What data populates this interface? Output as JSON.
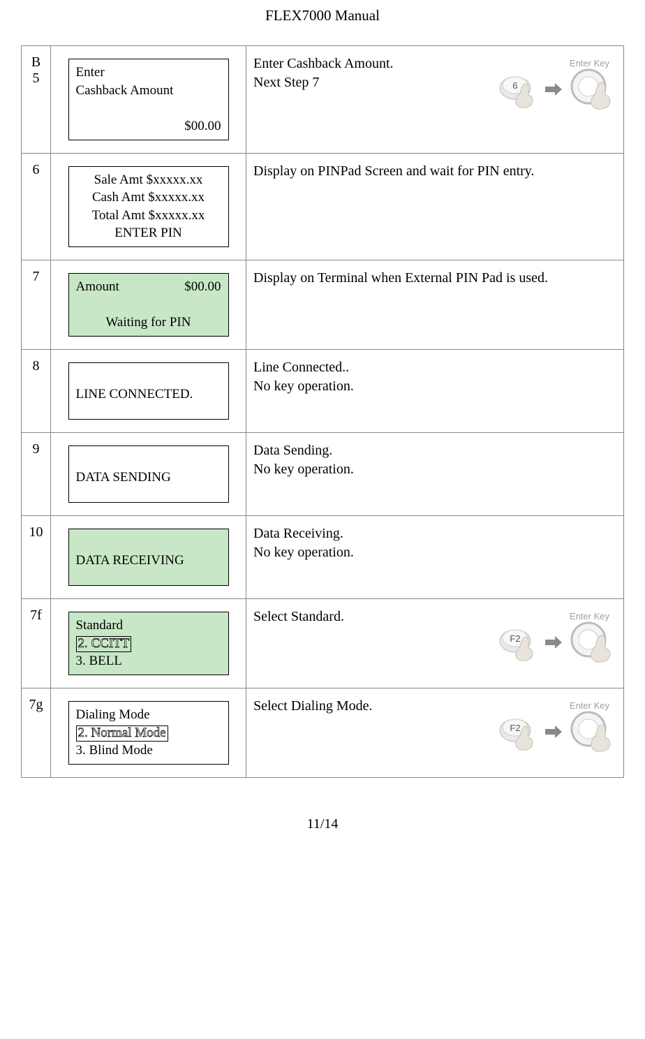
{
  "docTitle": "FLEX7000 Manual",
  "footer": "11/14",
  "colors": {
    "greenBg": "#c7e7c7",
    "border": "#888888",
    "text": "#000000"
  },
  "rows": [
    {
      "step": "B 5",
      "screenBg": "white",
      "screenLines": [
        {
          "text": "Enter",
          "align": "left"
        },
        {
          "text": "Cashback Amount",
          "align": "left"
        },
        {
          "text": "",
          "align": "left"
        },
        {
          "text": "$00.00",
          "align": "right"
        }
      ],
      "desc": [
        "Enter Cashback Amount.",
        "Next Step 7"
      ],
      "keyGraphic": {
        "left": "6",
        "label": "Enter Key"
      }
    },
    {
      "step": "6",
      "screenBg": "white",
      "screenLines": [
        {
          "text": "Sale Amt $xxxxx.xx",
          "align": "center"
        },
        {
          "text": "Cash Amt $xxxxx.xx",
          "align": "center"
        },
        {
          "text": "Total Amt $xxxxx.xx",
          "align": "center"
        },
        {
          "text": "ENTER PIN",
          "align": "center"
        }
      ],
      "desc": [
        "Display on PINPad Screen and wait for PIN entry."
      ]
    },
    {
      "step": "7",
      "screenBg": "green",
      "screenLines": [
        {
          "left": "Amount",
          "right": "$00.00",
          "type": "split"
        },
        {
          "text": "",
          "align": "left"
        },
        {
          "text": "Waiting for PIN",
          "align": "center"
        }
      ],
      "desc": [
        "Display on Terminal when External PIN Pad is used."
      ]
    },
    {
      "step": "8",
      "screenBg": "white",
      "screenLines": [
        {
          "text": "",
          "align": "left"
        },
        {
          "text": "LINE CONNECTED.",
          "align": "left"
        }
      ],
      "desc": [
        "Line Connected..",
        "No key operation."
      ]
    },
    {
      "step": "9",
      "screenBg": "white",
      "screenLines": [
        {
          "text": "",
          "align": "left"
        },
        {
          "text": "DATA SENDING",
          "align": "left"
        }
      ],
      "desc": [
        "Data Sending.",
        "No key operation."
      ]
    },
    {
      "step": "10",
      "screenBg": "green",
      "screenLines": [
        {
          "text": "",
          "align": "left"
        },
        {
          "text": "DATA RECEIVING",
          "align": "left"
        }
      ],
      "desc": [
        "Data Receiving.",
        "No key operation."
      ]
    },
    {
      "step": "7f",
      "screenBg": "green",
      "screenLines": [
        {
          "text": "Standard",
          "align": "left"
        },
        {
          "text": "2. CCITT",
          "align": "left",
          "outline": true
        },
        {
          "text": "3. BELL",
          "align": "left"
        }
      ],
      "desc": [
        "Select Standard."
      ],
      "keyGraphic": {
        "left": "F2",
        "label": "Enter Key"
      }
    },
    {
      "step": "7g",
      "screenBg": "white",
      "screenLines": [
        {
          "text": "Dialing Mode",
          "align": "left"
        },
        {
          "text": "2. Normal Mode",
          "align": "left",
          "outline": true
        },
        {
          "text": "3. Blind Mode",
          "align": "left"
        }
      ],
      "desc": [
        "Select Dialing Mode."
      ],
      "keyGraphic": {
        "left": "F2",
        "label": "Enter Key"
      }
    }
  ]
}
